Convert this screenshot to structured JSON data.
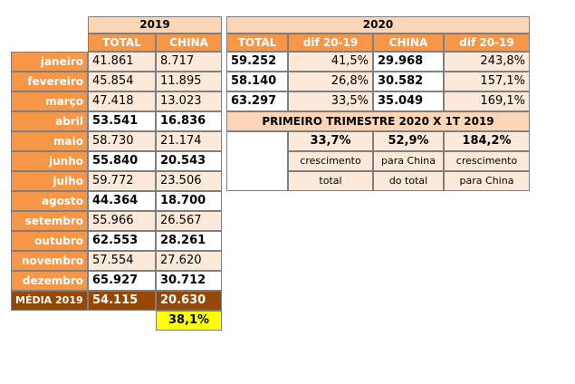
{
  "year_headers": {
    "y2019": "2019",
    "y2020": "2020"
  },
  "columns_2019": [
    "TOTAL",
    "CHINA"
  ],
  "columns_2020": [
    "TOTAL",
    "dif 20-19",
    "CHINA",
    "dif 20-19"
  ],
  "rows_2019": [
    [
      "janeiro",
      "41.861",
      "8.717"
    ],
    [
      "fevereiro",
      "45.854",
      "11.895"
    ],
    [
      "março",
      "47.418",
      "13.023"
    ],
    [
      "abril",
      "53.541",
      "16.836"
    ],
    [
      "maio",
      "58.730",
      "21.174"
    ],
    [
      "junho",
      "55.840",
      "20.543"
    ],
    [
      "julho",
      "59.772",
      "23.506"
    ],
    [
      "agosto",
      "44.364",
      "18.700"
    ],
    [
      "setembro",
      "55.966",
      "26.567"
    ],
    [
      "outubro",
      "62.553",
      "28.261"
    ],
    [
      "novembro",
      "57.554",
      "27.620"
    ],
    [
      "dezembro",
      "65.927",
      "30.712"
    ]
  ],
  "average_2019": [
    "MÉDIA 2019",
    "54.115",
    "20.630"
  ],
  "china_share_2019": "38,1%",
  "rows_2020": [
    [
      "59.252",
      "41,5%",
      "29.968",
      "243,8%"
    ],
    [
      "58.140",
      "26,8%",
      "30.582",
      "157,1%"
    ],
    [
      "63.297",
      "33,5%",
      "35.049",
      "169,1%"
    ]
  ],
  "quarter_summary": {
    "title": "PRIMEIRO TRIMESTRE 2020 X 1T 2019",
    "items": [
      {
        "value": "33,7%",
        "lines": [
          "crescimento",
          "total"
        ]
      },
      {
        "value": "52,9%",
        "lines": [
          "para China",
          "do total"
        ]
      },
      {
        "value": "184,2%",
        "lines": [
          "crescimento",
          "para China"
        ]
      }
    ]
  }
}
